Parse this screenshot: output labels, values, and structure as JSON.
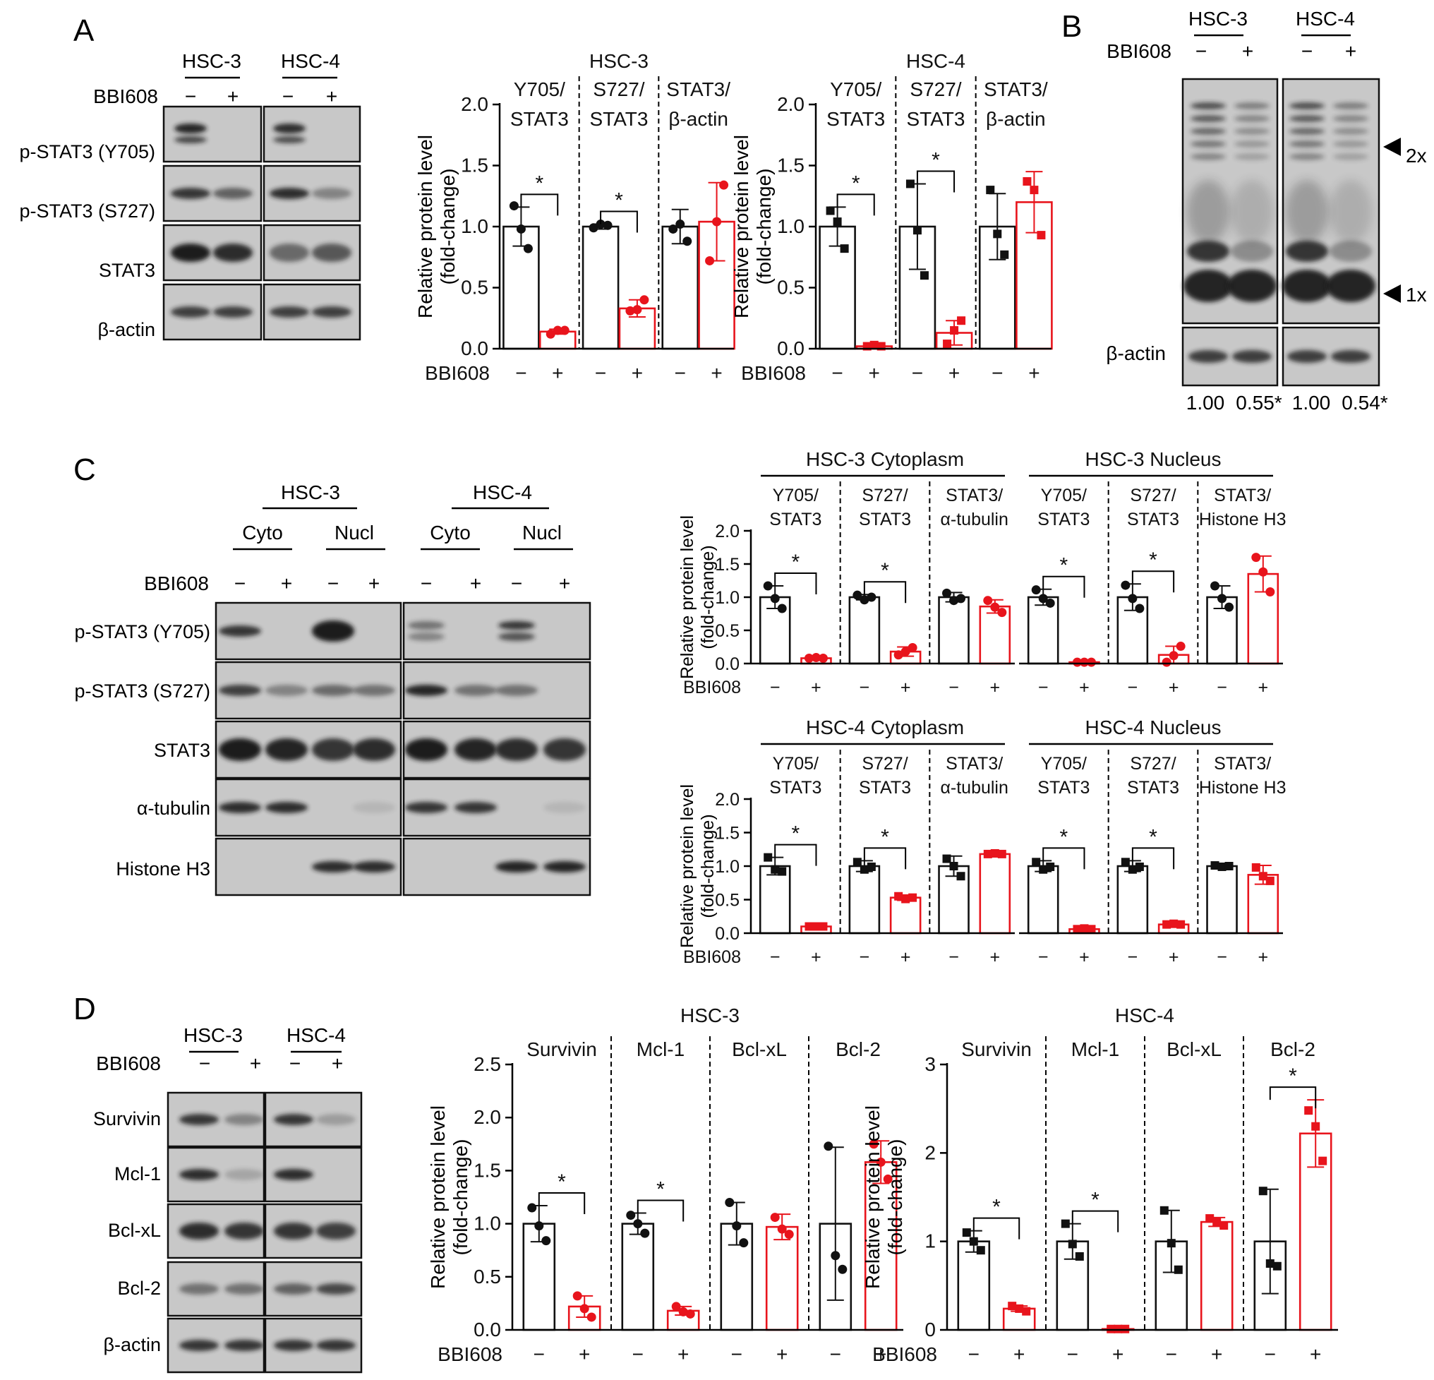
{
  "panel_letters": [
    "A",
    "B",
    "C",
    "D"
  ],
  "colors": {
    "control": "#111111",
    "treated": "#e8141c",
    "band": "#1a1a1a",
    "blot_bg": "#c8c8c8"
  },
  "treatment_label": "BBI608",
  "minus": "−",
  "plus": "+",
  "ylabel": [
    "Relative protein level",
    "(fold-change)"
  ],
  "blots": {
    "A": {
      "cells": [
        "HSC-3",
        "HSC-4"
      ],
      "rows": [
        "p-STAT3 (Y705)",
        "p-STAT3 (S727)",
        "STAT3",
        "β-actin"
      ]
    },
    "B": {
      "cells": [
        "HSC-3",
        "HSC-4"
      ],
      "markers": [
        "2x",
        "1x"
      ],
      "loading": "β-actin",
      "quant": [
        "1.00",
        "0.55*",
        "1.00",
        "0.54*"
      ]
    },
    "C": {
      "cells": [
        "HSC-3",
        "HSC-4"
      ],
      "fractions": [
        "Cyto",
        "Nucl"
      ],
      "rows": [
        "p-STAT3 (Y705)",
        "p-STAT3 (S727)",
        "STAT3",
        "α-tubulin",
        "Histone H3"
      ]
    },
    "D": {
      "cells": [
        "HSC-3",
        "HSC-4"
      ],
      "rows": [
        "Survivin",
        "Mcl-1",
        "Bcl-xL",
        "Bcl-2",
        "β-actin"
      ]
    }
  },
  "chart_data": [
    {
      "type": "bar",
      "panel": "A",
      "title": "HSC-3",
      "ylim": [
        0,
        2.0
      ],
      "yticks": [
        "0.0",
        "0.5",
        "1.0",
        "1.5",
        "2.0"
      ],
      "groups": [
        {
          "label": [
            "Y705/",
            "STAT3"
          ],
          "values": [
            1.0,
            0.14
          ],
          "err": [
            0.16,
            0.02
          ],
          "points": [
            [
              1.17,
              0.98,
              0.82
            ],
            [
              0.12,
              0.15,
              0.15
            ]
          ],
          "sig": true
        },
        {
          "label": [
            "S727/",
            "STAT3"
          ],
          "values": [
            1.0,
            0.33
          ],
          "err": [
            0.02,
            0.07
          ],
          "points": [
            [
              0.99,
              1.02,
              1.01
            ],
            [
              0.31,
              0.32,
              0.4
            ]
          ],
          "sig": true
        },
        {
          "label": [
            "STAT3/",
            "β-actin"
          ],
          "values": [
            1.0,
            1.04
          ],
          "err": [
            0.14,
            0.32
          ],
          "points": [
            [
              0.98,
              1.02,
              0.88
            ],
            [
              0.72,
              1.04,
              1.34
            ]
          ],
          "sig": false
        }
      ]
    },
    {
      "type": "bar",
      "panel": "A",
      "title": "HSC-4",
      "ylim": [
        0,
        2.0
      ],
      "yticks": [
        "0.0",
        "0.5",
        "1.0",
        "1.5",
        "2.0"
      ],
      "groups": [
        {
          "label": [
            "Y705/",
            "STAT3"
          ],
          "values": [
            1.0,
            0.02
          ],
          "err": [
            0.16,
            0.01
          ],
          "points": [
            [
              1.13,
              1.04,
              0.82
            ],
            [
              0.02,
              0.03,
              0.02
            ]
          ],
          "sig": true
        },
        {
          "label": [
            "S727/",
            "STAT3"
          ],
          "values": [
            1.0,
            0.13
          ],
          "err": [
            0.35,
            0.1
          ],
          "points": [
            [
              1.35,
              0.97,
              0.6
            ],
            [
              0.04,
              0.15,
              0.23
            ]
          ],
          "sig": true
        },
        {
          "label": [
            "STAT3/",
            "β-actin"
          ],
          "values": [
            1.0,
            1.2
          ],
          "err": [
            0.27,
            0.25
          ],
          "points": [
            [
              1.3,
              0.94,
              0.77
            ],
            [
              1.37,
              1.3,
              0.93
            ]
          ],
          "sig": false
        }
      ]
    },
    {
      "type": "bar",
      "panel": "C",
      "title": "HSC-3 Cytoplasm",
      "ylim": [
        0,
        2.0
      ],
      "yticks": [
        "0.0",
        "0.5",
        "1.0",
        "1.5",
        "2.0"
      ],
      "groups": [
        {
          "label": [
            "Y705/",
            "STAT3"
          ],
          "values": [
            1.0,
            0.08
          ],
          "err": [
            0.17,
            0.01
          ],
          "points": [
            [
              1.17,
              0.98,
              0.83
            ],
            [
              0.08,
              0.09,
              0.08
            ]
          ],
          "sig": true
        },
        {
          "label": [
            "S727/",
            "STAT3"
          ],
          "values": [
            1.0,
            0.18
          ],
          "err": [
            0.04,
            0.07
          ],
          "points": [
            [
              1.03,
              0.96,
              1.0
            ],
            [
              0.13,
              0.18,
              0.24
            ]
          ],
          "sig": true
        },
        {
          "label": [
            "STAT3/",
            "α-tubulin"
          ],
          "values": [
            1.0,
            0.86
          ],
          "err": [
            0.07,
            0.1
          ],
          "points": [
            [
              1.06,
              0.95,
              0.98
            ],
            [
              0.95,
              0.85,
              0.77
            ]
          ],
          "sig": false
        }
      ]
    },
    {
      "type": "bar",
      "panel": "C",
      "title": "HSC-3 Nucleus",
      "ylim": [
        0,
        2.0
      ],
      "yticks": [
        "0.0",
        "0.5",
        "1.0",
        "1.5",
        "2.0"
      ],
      "groups": [
        {
          "label": [
            "Y705/",
            "STAT3"
          ],
          "values": [
            1.0,
            0.02
          ],
          "err": [
            0.12,
            0.01
          ],
          "points": [
            [
              1.11,
              0.98,
              0.91
            ],
            [
              0.02,
              0.02,
              0.02
            ]
          ],
          "sig": true
        },
        {
          "label": [
            "S727/",
            "STAT3"
          ],
          "values": [
            1.0,
            0.13
          ],
          "err": [
            0.2,
            0.13
          ],
          "points": [
            [
              1.18,
              0.98,
              0.83
            ],
            [
              0.02,
              0.12,
              0.26
            ]
          ],
          "sig": true
        },
        {
          "label": [
            "STAT3/",
            "Histone H3"
          ],
          "values": [
            1.0,
            1.35
          ],
          "err": [
            0.17,
            0.27
          ],
          "points": [
            [
              1.17,
              0.98,
              0.85
            ],
            [
              1.6,
              1.38,
              1.08
            ]
          ],
          "sig": false
        }
      ]
    },
    {
      "type": "bar",
      "panel": "C",
      "title": "HSC-4 Cytoplasm",
      "ylim": [
        0,
        2.0
      ],
      "yticks": [
        "0.0",
        "0.5",
        "1.0",
        "1.5",
        "2.0"
      ],
      "groups": [
        {
          "label": [
            "Y705/",
            "STAT3"
          ],
          "values": [
            1.0,
            0.1
          ],
          "err": [
            0.13,
            0.01
          ],
          "points": [
            [
              1.13,
              0.95,
              0.92
            ],
            [
              0.1,
              0.1,
              0.1
            ]
          ],
          "sig": true
        },
        {
          "label": [
            "S727/",
            "STAT3"
          ],
          "values": [
            1.0,
            0.53
          ],
          "err": [
            0.08,
            0.04
          ],
          "points": [
            [
              1.06,
              0.95,
              0.99
            ],
            [
              0.55,
              0.51,
              0.53
            ]
          ],
          "sig": true
        },
        {
          "label": [
            "STAT3/",
            "α-tubulin"
          ],
          "values": [
            1.0,
            1.18
          ],
          "err": [
            0.15,
            0.01
          ],
          "points": [
            [
              1.11,
              1.0,
              0.85
            ],
            [
              1.18,
              1.19,
              1.18
            ]
          ],
          "sig": false
        }
      ]
    },
    {
      "type": "bar",
      "panel": "C",
      "title": "HSC-4 Nucleus",
      "ylim": [
        0,
        2.0
      ],
      "yticks": [
        "0.0",
        "0.5",
        "1.0",
        "1.5",
        "2.0"
      ],
      "groups": [
        {
          "label": [
            "Y705/",
            "STAT3"
          ],
          "values": [
            1.0,
            0.06
          ],
          "err": [
            0.08,
            0.01
          ],
          "points": [
            [
              1.06,
              0.95,
              0.99
            ],
            [
              0.06,
              0.07,
              0.06
            ]
          ],
          "sig": true
        },
        {
          "label": [
            "S727/",
            "STAT3"
          ],
          "values": [
            1.0,
            0.13
          ],
          "err": [
            0.08,
            0.02
          ],
          "points": [
            [
              1.06,
              0.95,
              0.99
            ],
            [
              0.13,
              0.14,
              0.13
            ]
          ],
          "sig": true
        },
        {
          "label": [
            "STAT3/",
            "Histone H3"
          ],
          "values": [
            1.0,
            0.87
          ],
          "err": [
            0.02,
            0.14
          ],
          "points": [
            [
              1.01,
              0.99,
              1.0
            ],
            [
              0.98,
              0.85,
              0.78
            ]
          ],
          "sig": false
        }
      ]
    },
    {
      "type": "bar",
      "panel": "D",
      "title": "HSC-3",
      "ylim": [
        0,
        2.5
      ],
      "yticks": [
        "0.0",
        "0.5",
        "1.0",
        "1.5",
        "2.0",
        "2.5"
      ],
      "groups": [
        {
          "label": [
            "Survivin"
          ],
          "values": [
            1.0,
            0.22
          ],
          "err": [
            0.17,
            0.1
          ],
          "points": [
            [
              1.15,
              0.98,
              0.84
            ],
            [
              0.32,
              0.2,
              0.12
            ]
          ],
          "sig": true
        },
        {
          "label": [
            "Mcl-1"
          ],
          "values": [
            1.0,
            0.18
          ],
          "err": [
            0.1,
            0.04
          ],
          "points": [
            [
              1.08,
              1.0,
              0.91
            ],
            [
              0.22,
              0.17,
              0.15
            ]
          ],
          "sig": true
        },
        {
          "label": [
            "Bcl-xL"
          ],
          "values": [
            1.0,
            0.97
          ],
          "err": [
            0.2,
            0.12
          ],
          "points": [
            [
              1.2,
              0.98,
              0.82
            ],
            [
              1.06,
              0.95,
              0.9
            ]
          ],
          "sig": false
        },
        {
          "label": [
            "Bcl-2"
          ],
          "values": [
            1.0,
            1.58
          ],
          "err": [
            0.72,
            0.2
          ],
          "points": [
            [
              1.73,
              0.7,
              0.57
            ],
            [
              1.75,
              1.58,
              1.42
            ]
          ],
          "sig": false
        }
      ]
    },
    {
      "type": "bar",
      "panel": "D",
      "title": "HSC-4",
      "ylim": [
        0,
        3
      ],
      "yticks": [
        "0",
        "1",
        "2",
        "3"
      ],
      "groups": [
        {
          "label": [
            "Survivin"
          ],
          "values": [
            1.0,
            0.24
          ],
          "err": [
            0.12,
            0.03
          ],
          "points": [
            [
              1.1,
              1.0,
              0.9
            ],
            [
              0.27,
              0.24,
              0.21
            ]
          ],
          "sig": true
        },
        {
          "label": [
            "Mcl-1"
          ],
          "values": [
            1.0,
            0.01
          ],
          "err": [
            0.2,
            0.005
          ],
          "points": [
            [
              1.2,
              0.97,
              0.83
            ],
            [
              0.01,
              0.01,
              0.01
            ]
          ],
          "sig": true
        },
        {
          "label": [
            "Bcl-xL"
          ],
          "values": [
            1.0,
            1.22
          ],
          "err": [
            0.35,
            0.05
          ],
          "points": [
            [
              1.35,
              0.98,
              0.68
            ],
            [
              1.26,
              1.22,
              1.18
            ]
          ],
          "sig": false
        },
        {
          "label": [
            "Bcl-2"
          ],
          "values": [
            1.0,
            2.22
          ],
          "err": [
            0.59,
            0.38
          ],
          "points": [
            [
              1.57,
              0.75,
              0.72
            ],
            [
              2.48,
              2.3,
              1.91
            ]
          ],
          "sig": true
        }
      ]
    }
  ]
}
